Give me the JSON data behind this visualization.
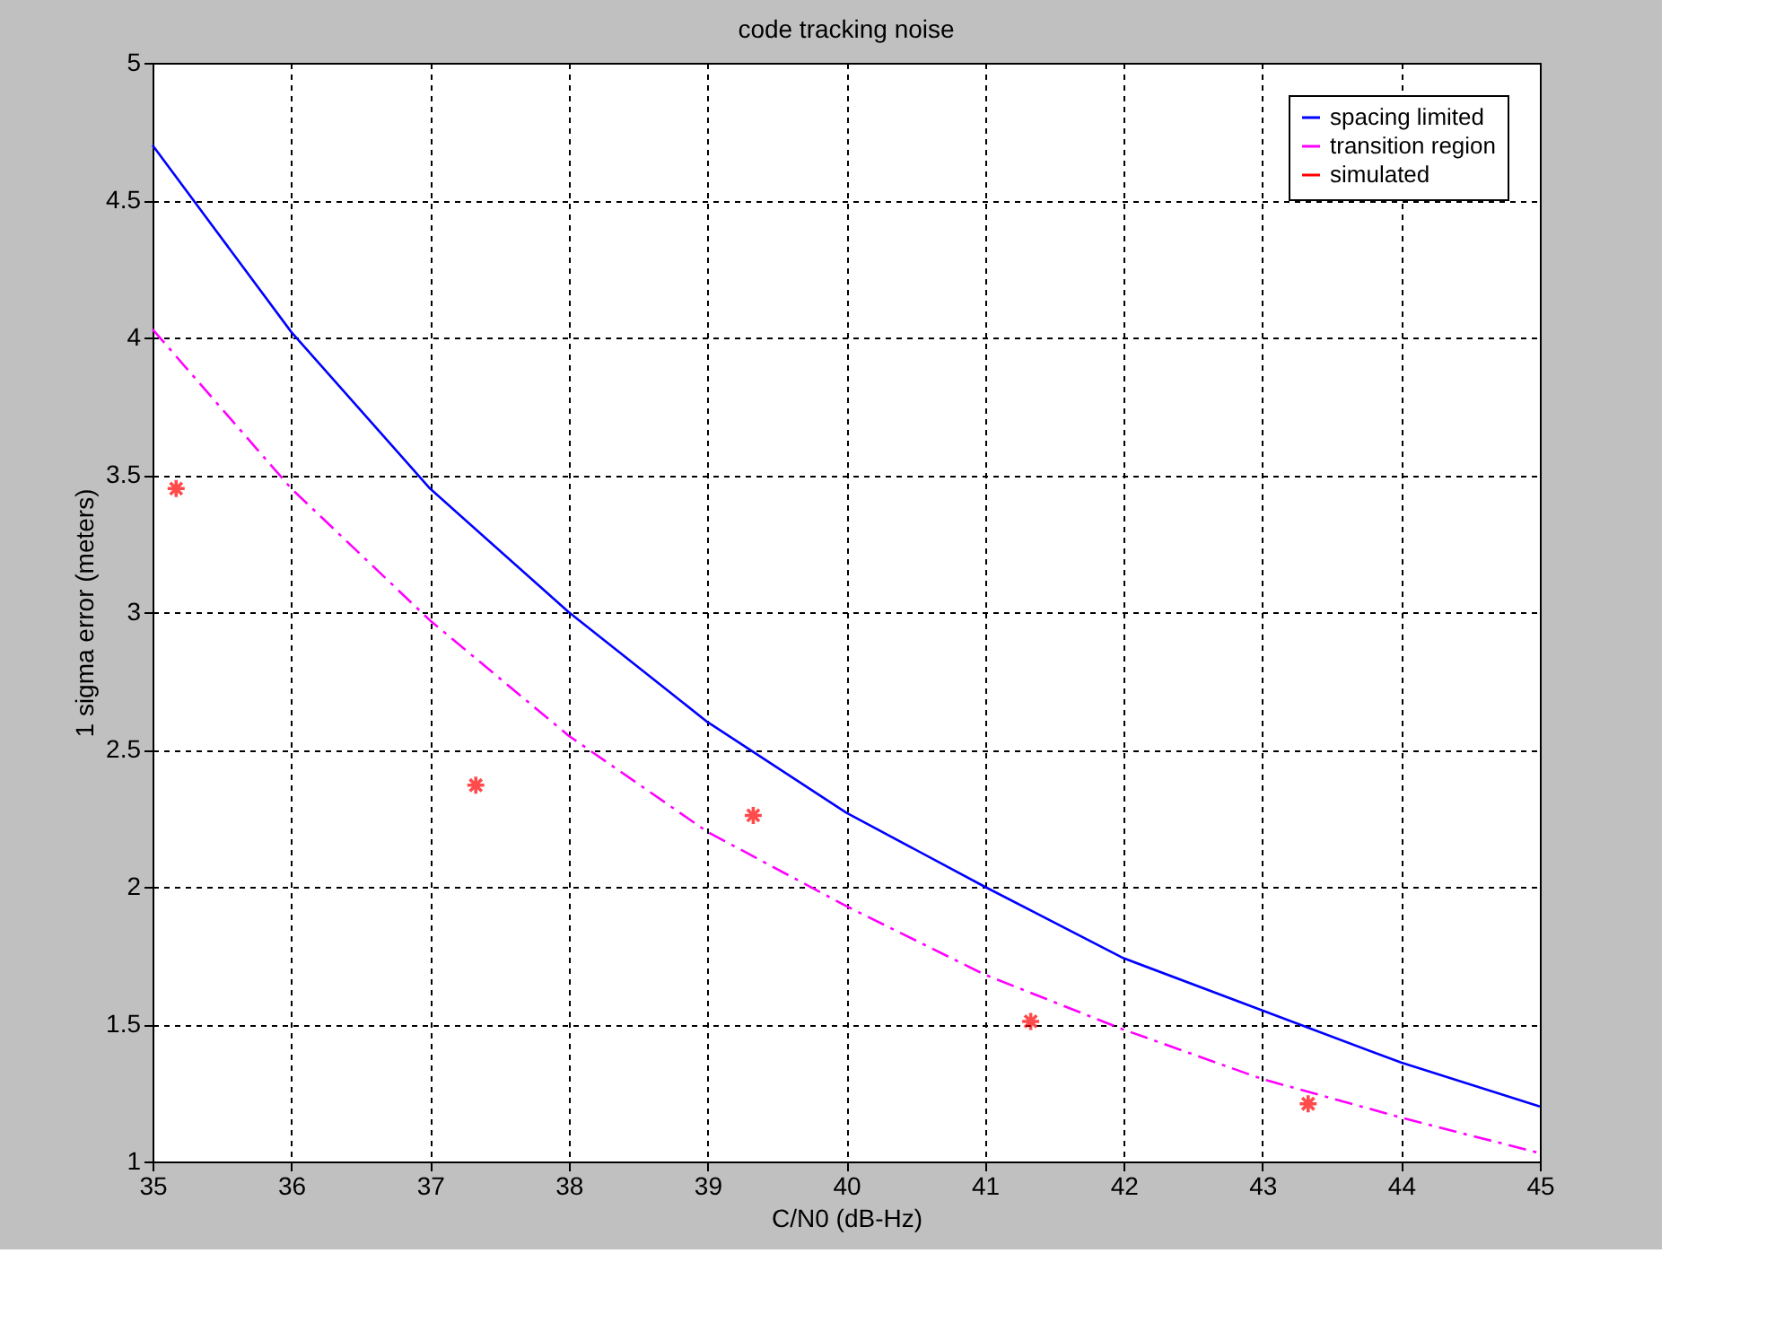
{
  "chart_data": {
    "type": "line",
    "title": "code tracking noise",
    "xlabel": "C/N0 (dB-Hz)",
    "ylabel": "1 sigma error (meters)",
    "xlim": [
      35,
      45
    ],
    "ylim": [
      1,
      5
    ],
    "xticks": [
      35,
      36,
      37,
      38,
      39,
      40,
      41,
      42,
      43,
      44,
      45
    ],
    "yticks": [
      1,
      1.5,
      2,
      2.5,
      3,
      3.5,
      4,
      4.5,
      5
    ],
    "grid": true,
    "legend": "top right",
    "series": [
      {
        "name": "spacing limited",
        "type": "line",
        "color": "#0000ff",
        "line_style": "solid",
        "x": [
          35,
          36,
          37,
          38,
          39,
          40,
          41,
          42,
          43,
          44,
          45
        ],
        "values": [
          4.7,
          4.02,
          3.45,
          3.0,
          2.6,
          2.27,
          2.0,
          1.74,
          1.55,
          1.36,
          1.2
        ]
      },
      {
        "name": "transition region",
        "type": "line",
        "color": "#ff00ff",
        "line_style": "dashed",
        "x": [
          35,
          36,
          37,
          38,
          39,
          40,
          41,
          42,
          43,
          44,
          45
        ],
        "values": [
          4.03,
          3.45,
          2.97,
          2.55,
          2.2,
          1.93,
          1.68,
          1.48,
          1.3,
          1.16,
          1.03
        ]
      },
      {
        "name": "simulated",
        "type": "scatter",
        "color": "#ff0000",
        "marker": "cross",
        "x": [
          35.17,
          37.33,
          39.33,
          41.33,
          43.33
        ],
        "values": [
          3.45,
          2.37,
          2.26,
          1.51,
          1.21
        ]
      }
    ]
  }
}
